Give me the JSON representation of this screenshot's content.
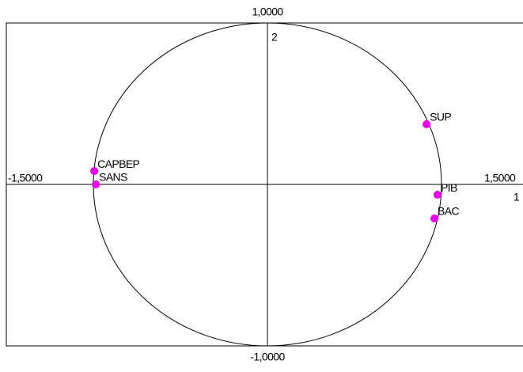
{
  "chart_data": {
    "type": "scatter",
    "xlabel": "1",
    "ylabel": "2",
    "x": [
      0.914,
      -0.995,
      -0.986,
      0.977,
      0.959
    ],
    "values": [
      0.373,
      0.083,
      0.0,
      -0.064,
      -0.211
    ],
    "labels": [
      "SUP",
      "CAPBEP",
      "SANS",
      "PIB",
      "BAC"
    ],
    "color": "#ee00ee",
    "circle_radius": 1,
    "xlim": [
      -1.5,
      1.5
    ],
    "ylim": [
      -1,
      1
    ],
    "xticks": [
      {
        "value": -1.5,
        "label": "-1,5000"
      },
      {
        "value": 1.5,
        "label": "1,5000"
      }
    ],
    "yticks": [
      {
        "value": 1,
        "label": "1,0000"
      },
      {
        "value": -1,
        "label": "-1,0000"
      }
    ]
  }
}
